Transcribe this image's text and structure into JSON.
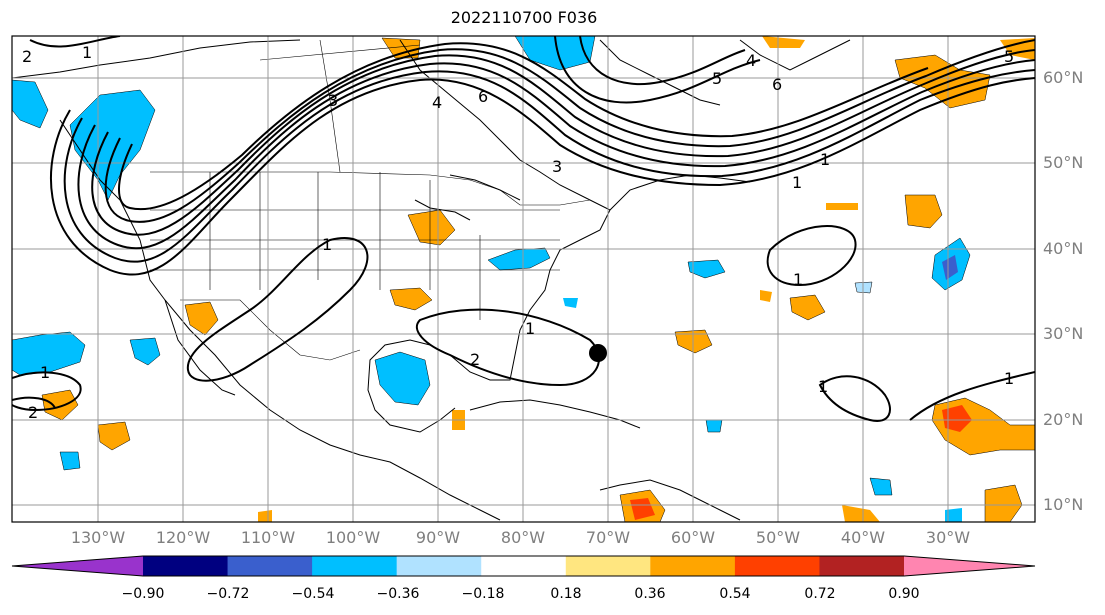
{
  "title": "2022110700 F036",
  "lat_labels": [
    "60°N",
    "50°N",
    "40°N",
    "30°N",
    "20°N",
    "10°N"
  ],
  "lon_labels": [
    "130°W",
    "120°W",
    "110°W",
    "100°W",
    "90°W",
    "80°W",
    "70°W",
    "60°W",
    "50°W",
    "40°W",
    "30°W"
  ],
  "colorbar": {
    "ticks": [
      "−0.90",
      "−0.72",
      "−0.54",
      "−0.36",
      "−0.18",
      "0.18",
      "0.36",
      "0.54",
      "0.72",
      "0.90"
    ],
    "colors": [
      "#9933cc",
      "#000080",
      "#3a5fcd",
      "#00bfff",
      "#b0e2ff",
      "#ffffff",
      "#ffe680",
      "#ffa500",
      "#ff4000",
      "#b22222",
      "#ff85b0"
    ]
  },
  "contour_labels": [
    "1",
    "2",
    "4",
    "5",
    "6",
    "3",
    "1",
    "1",
    "1",
    "2",
    "1",
    "5",
    "4",
    "6",
    "2",
    "1",
    "1",
    "1",
    "1",
    "3"
  ],
  "marker": "filled-circle"
}
